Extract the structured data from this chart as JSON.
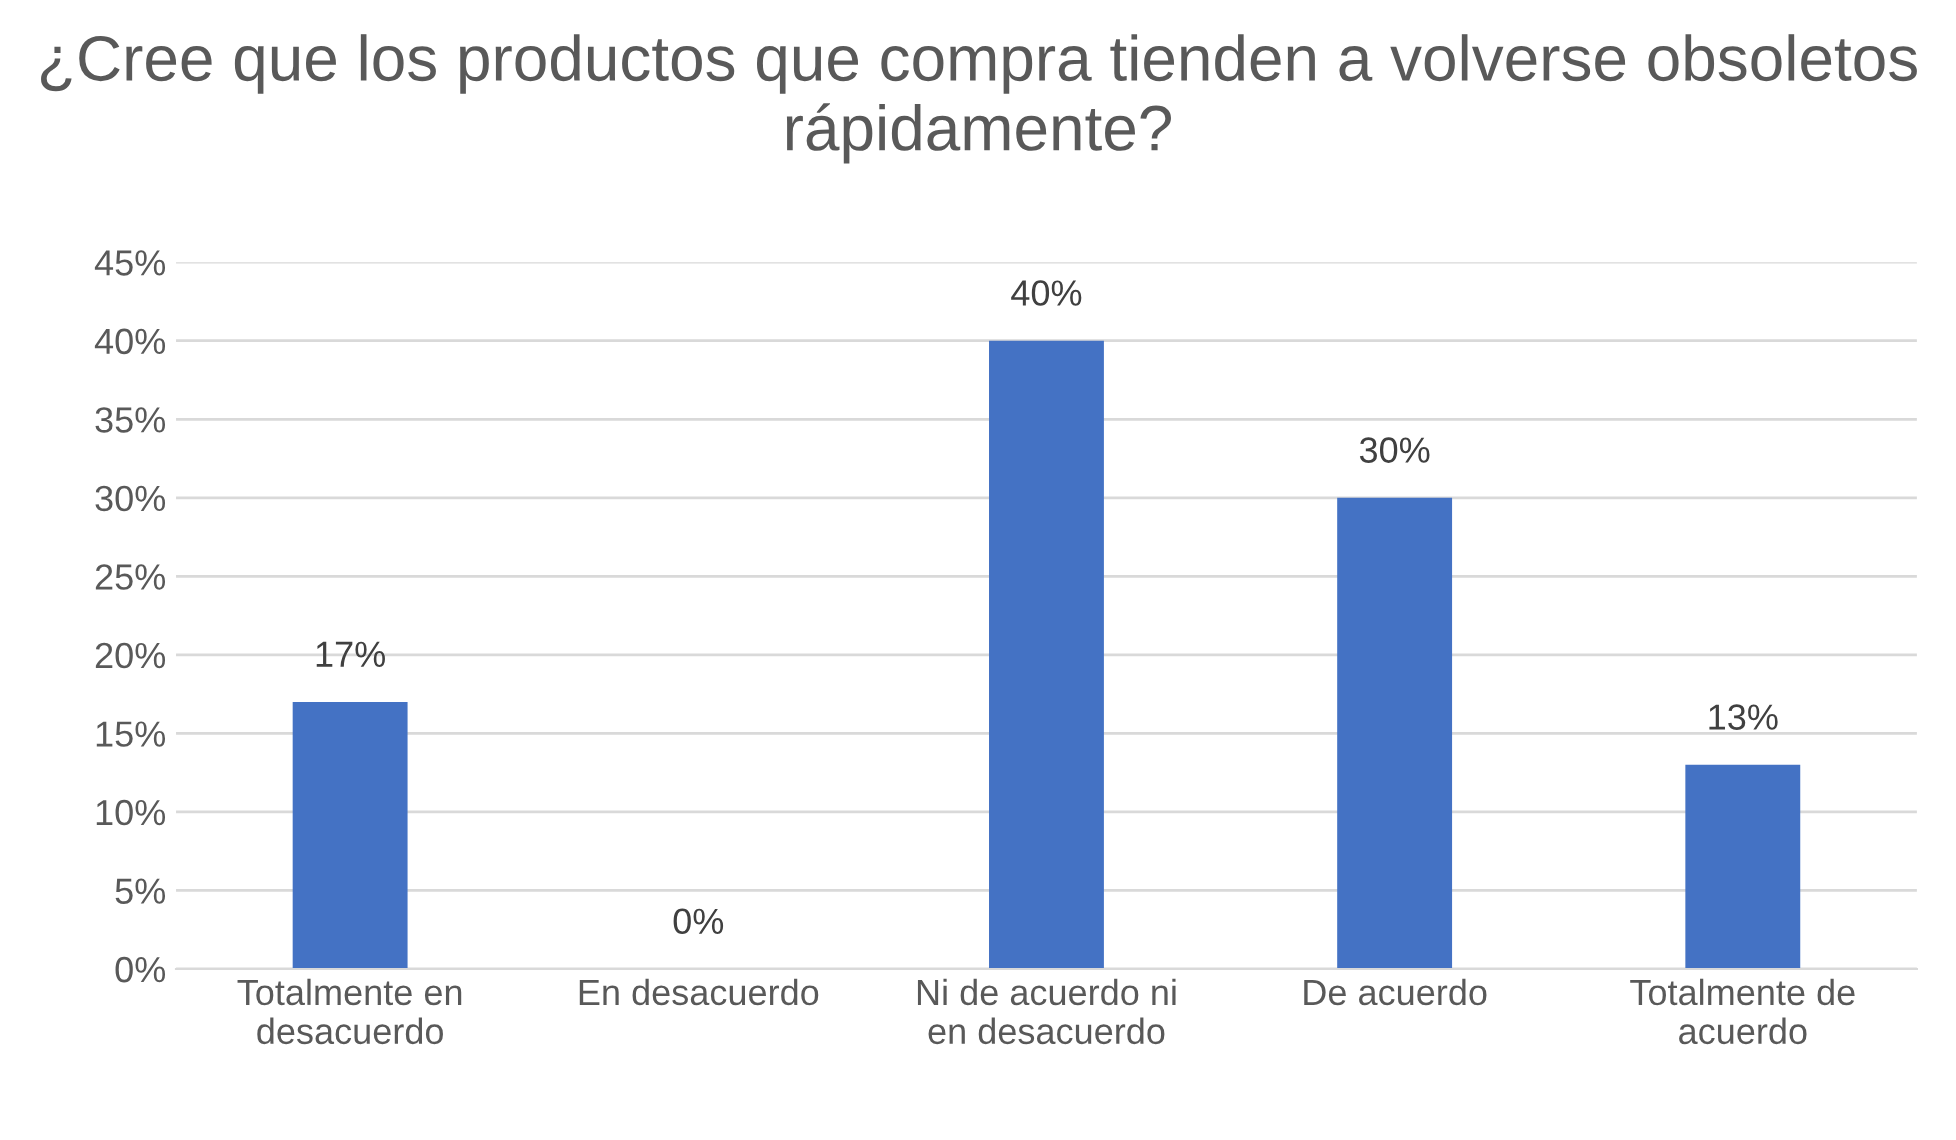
{
  "chart_data": {
    "type": "bar",
    "title": "¿Cree que los productos que compra tienden a volverse obsoletos rápidamente?",
    "categories": [
      "Totalmente en desacuerdo",
      "En desacuerdo",
      "Ni de acuerdo ni en desacuerdo",
      "De acuerdo",
      "Totalmente de acuerdo"
    ],
    "values": [
      17,
      0,
      40,
      30,
      13
    ],
    "value_labels": [
      "17%",
      "0%",
      "40%",
      "30%",
      "13%"
    ],
    "color": "#4472c4",
    "ylim": [
      0,
      45
    ],
    "yticks": [
      {
        "value": 0,
        "label": "0%"
      },
      {
        "value": 5,
        "label": "5%"
      },
      {
        "value": 10,
        "label": "10%"
      },
      {
        "value": 15,
        "label": "15%"
      },
      {
        "value": 20,
        "label": "20%"
      },
      {
        "value": 25,
        "label": "25%"
      },
      {
        "value": 30,
        "label": "30%"
      },
      {
        "value": 35,
        "label": "35%"
      },
      {
        "value": 40,
        "label": "40%"
      },
      {
        "value": 45,
        "label": "45%"
      }
    ],
    "grid": "y"
  }
}
